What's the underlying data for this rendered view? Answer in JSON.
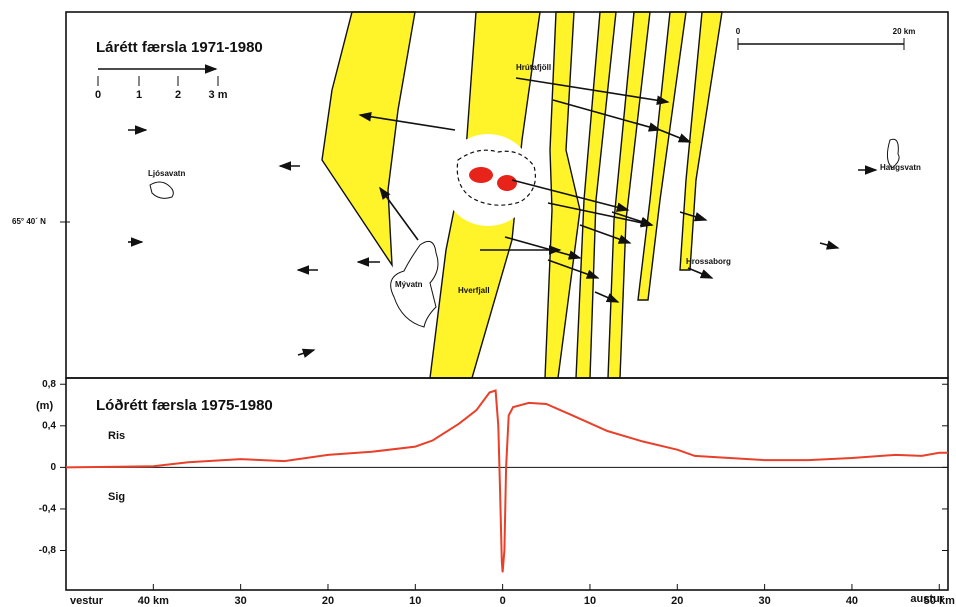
{
  "map": {
    "title": "Lárétt færsla 1971-1980",
    "scale_m": [
      "0",
      "1",
      "2",
      "3 m"
    ],
    "scale_km": [
      "0",
      "20 km"
    ],
    "latitude": "65° 40´ N",
    "places": [
      "Hrútafjöll",
      "Ljósavatn",
      "Haugsvatn",
      "Mývatn",
      "Hverfjall",
      "Hrossaborg"
    ]
  },
  "chart_data": {
    "type": "line",
    "title": "Lóðrétt færsla 1975-1980",
    "ylabel": "(m)",
    "annotations": [
      "Ris",
      "Sig"
    ],
    "xlabel_west": "vestur",
    "xlabel_east": "austur",
    "color": "#e8402a",
    "x": [
      -50,
      -40,
      -36,
      -30,
      -25,
      -20,
      -15,
      -10,
      -8,
      -5,
      -3,
      -1.5,
      -0.8,
      -0.5,
      -0.3,
      -0.1,
      0,
      0.2,
      0.4,
      0.7,
      1.2,
      3,
      5,
      8,
      12,
      16,
      20,
      22,
      26,
      30,
      35,
      40,
      45,
      48,
      50,
      51
    ],
    "values": [
      0.0,
      0.01,
      0.05,
      0.08,
      0.06,
      0.12,
      0.15,
      0.2,
      0.26,
      0.42,
      0.55,
      0.72,
      0.74,
      0.4,
      -0.2,
      -0.9,
      -1.01,
      -0.8,
      0.0,
      0.5,
      0.58,
      0.62,
      0.61,
      0.5,
      0.35,
      0.25,
      0.17,
      0.11,
      0.09,
      0.07,
      0.07,
      0.09,
      0.12,
      0.11,
      0.14,
      0.14
    ],
    "xlim": [
      -50,
      51
    ],
    "ylim": [
      -1.18,
      0.86
    ],
    "xticks": [
      {
        "value": -40,
        "label": "40 km"
      },
      {
        "value": -30,
        "label": "30"
      },
      {
        "value": -20,
        "label": "20"
      },
      {
        "value": -10,
        "label": "10"
      },
      0,
      10,
      20,
      30,
      40,
      {
        "value": 50,
        "label": "50 km"
      }
    ],
    "yticks": [
      {
        "value": 0.8,
        "label": "0,8"
      },
      {
        "value": 0.4,
        "label": "0,4"
      },
      0,
      {
        "value": -0.4,
        "label": "-0,4"
      },
      {
        "value": -0.8,
        "label": "-0,8"
      }
    ]
  }
}
